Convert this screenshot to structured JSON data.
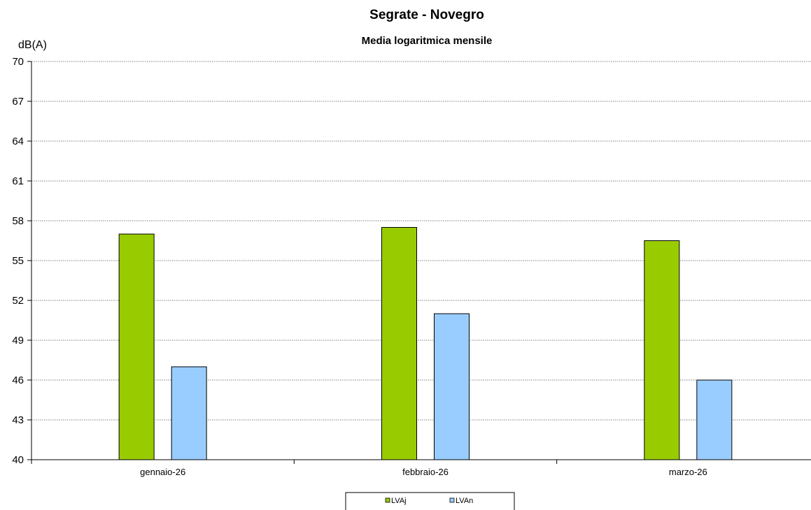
{
  "chart_data": {
    "type": "bar",
    "title": "Segrate - Novegro",
    "subtitle": "Media logaritmica mensile",
    "ylabel": "dB(A)",
    "xlabel": "",
    "categories": [
      "gennaio-26",
      "febbraio-26",
      "marzo-26"
    ],
    "series": [
      {
        "name": "LVAj",
        "values": [
          57.0,
          57.5,
          56.5
        ],
        "color": "#99cc00"
      },
      {
        "name": "LVAn",
        "values": [
          47.0,
          51.0,
          46.0
        ],
        "color": "#99ccff"
      }
    ],
    "ylim": [
      40,
      70
    ],
    "yticks": [
      40,
      43,
      46,
      49,
      52,
      55,
      58,
      61,
      64,
      67,
      70
    ],
    "grid": true,
    "legend_position": "bottom"
  }
}
